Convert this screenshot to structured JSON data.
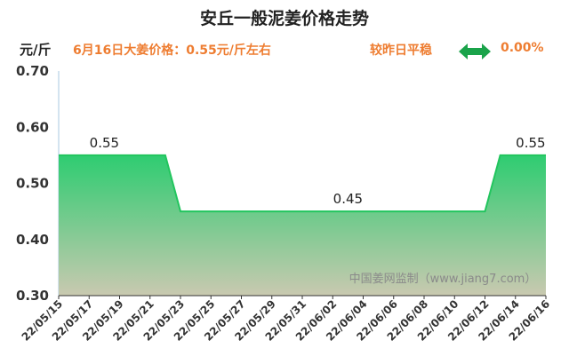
{
  "title": "安丘一般泥姜价格走势",
  "header": {
    "unit": "元/斤",
    "today_price": "6月16日大姜价格：0.55元/斤左右",
    "compare_label": "较昨日平稳",
    "compare_icon": "double-arrow-icon",
    "change_pct": "0.00%"
  },
  "watermark": "中国姜网监制（www.jiang7.com）",
  "colors": {
    "line": "#22c55e",
    "fill_top": "#2ecc71",
    "fill_bottom": "#c9c9b0",
    "accent": "#ee7d31",
    "arrow": "#1aa34a"
  },
  "chart_data": {
    "type": "area",
    "title": "安丘一般泥姜价格走势",
    "ylabel": "元/斤",
    "xlabel": "",
    "ylim": [
      0.3,
      0.7
    ],
    "yticks": [
      "0.70",
      "0.60",
      "0.50",
      "0.40",
      "0.30"
    ],
    "xticks": [
      "22/05/15",
      "22/05/17",
      "22/05/19",
      "22/05/21",
      "22/05/23",
      "22/05/25",
      "22/05/27",
      "22/05/29",
      "22/05/31",
      "22/06/02",
      "22/06/04",
      "22/06/06",
      "22/06/08",
      "22/06/10",
      "22/06/12",
      "22/06/14",
      "22/06/16"
    ],
    "x": [
      "22/05/15",
      "22/05/16",
      "22/05/17",
      "22/05/18",
      "22/05/19",
      "22/05/20",
      "22/05/21",
      "22/05/22",
      "22/05/23",
      "22/05/24",
      "22/05/25",
      "22/05/26",
      "22/05/27",
      "22/05/28",
      "22/05/29",
      "22/05/30",
      "22/05/31",
      "22/06/01",
      "22/06/02",
      "22/06/03",
      "22/06/04",
      "22/06/05",
      "22/06/06",
      "22/06/07",
      "22/06/08",
      "22/06/09",
      "22/06/10",
      "22/06/11",
      "22/06/12",
      "22/06/13",
      "22/06/14",
      "22/06/15",
      "22/06/16"
    ],
    "values": [
      0.55,
      0.55,
      0.55,
      0.55,
      0.55,
      0.55,
      0.55,
      0.55,
      0.45,
      0.45,
      0.45,
      0.45,
      0.45,
      0.45,
      0.45,
      0.45,
      0.45,
      0.45,
      0.45,
      0.45,
      0.45,
      0.45,
      0.45,
      0.45,
      0.45,
      0.45,
      0.45,
      0.45,
      0.45,
      0.55,
      0.55,
      0.55,
      0.55
    ],
    "data_labels": [
      {
        "x": "22/05/18",
        "text": "0.55"
      },
      {
        "x": "22/06/03",
        "text": "0.45"
      },
      {
        "x": "22/06/15",
        "text": "0.55"
      }
    ],
    "grid": false,
    "legend": "none"
  }
}
